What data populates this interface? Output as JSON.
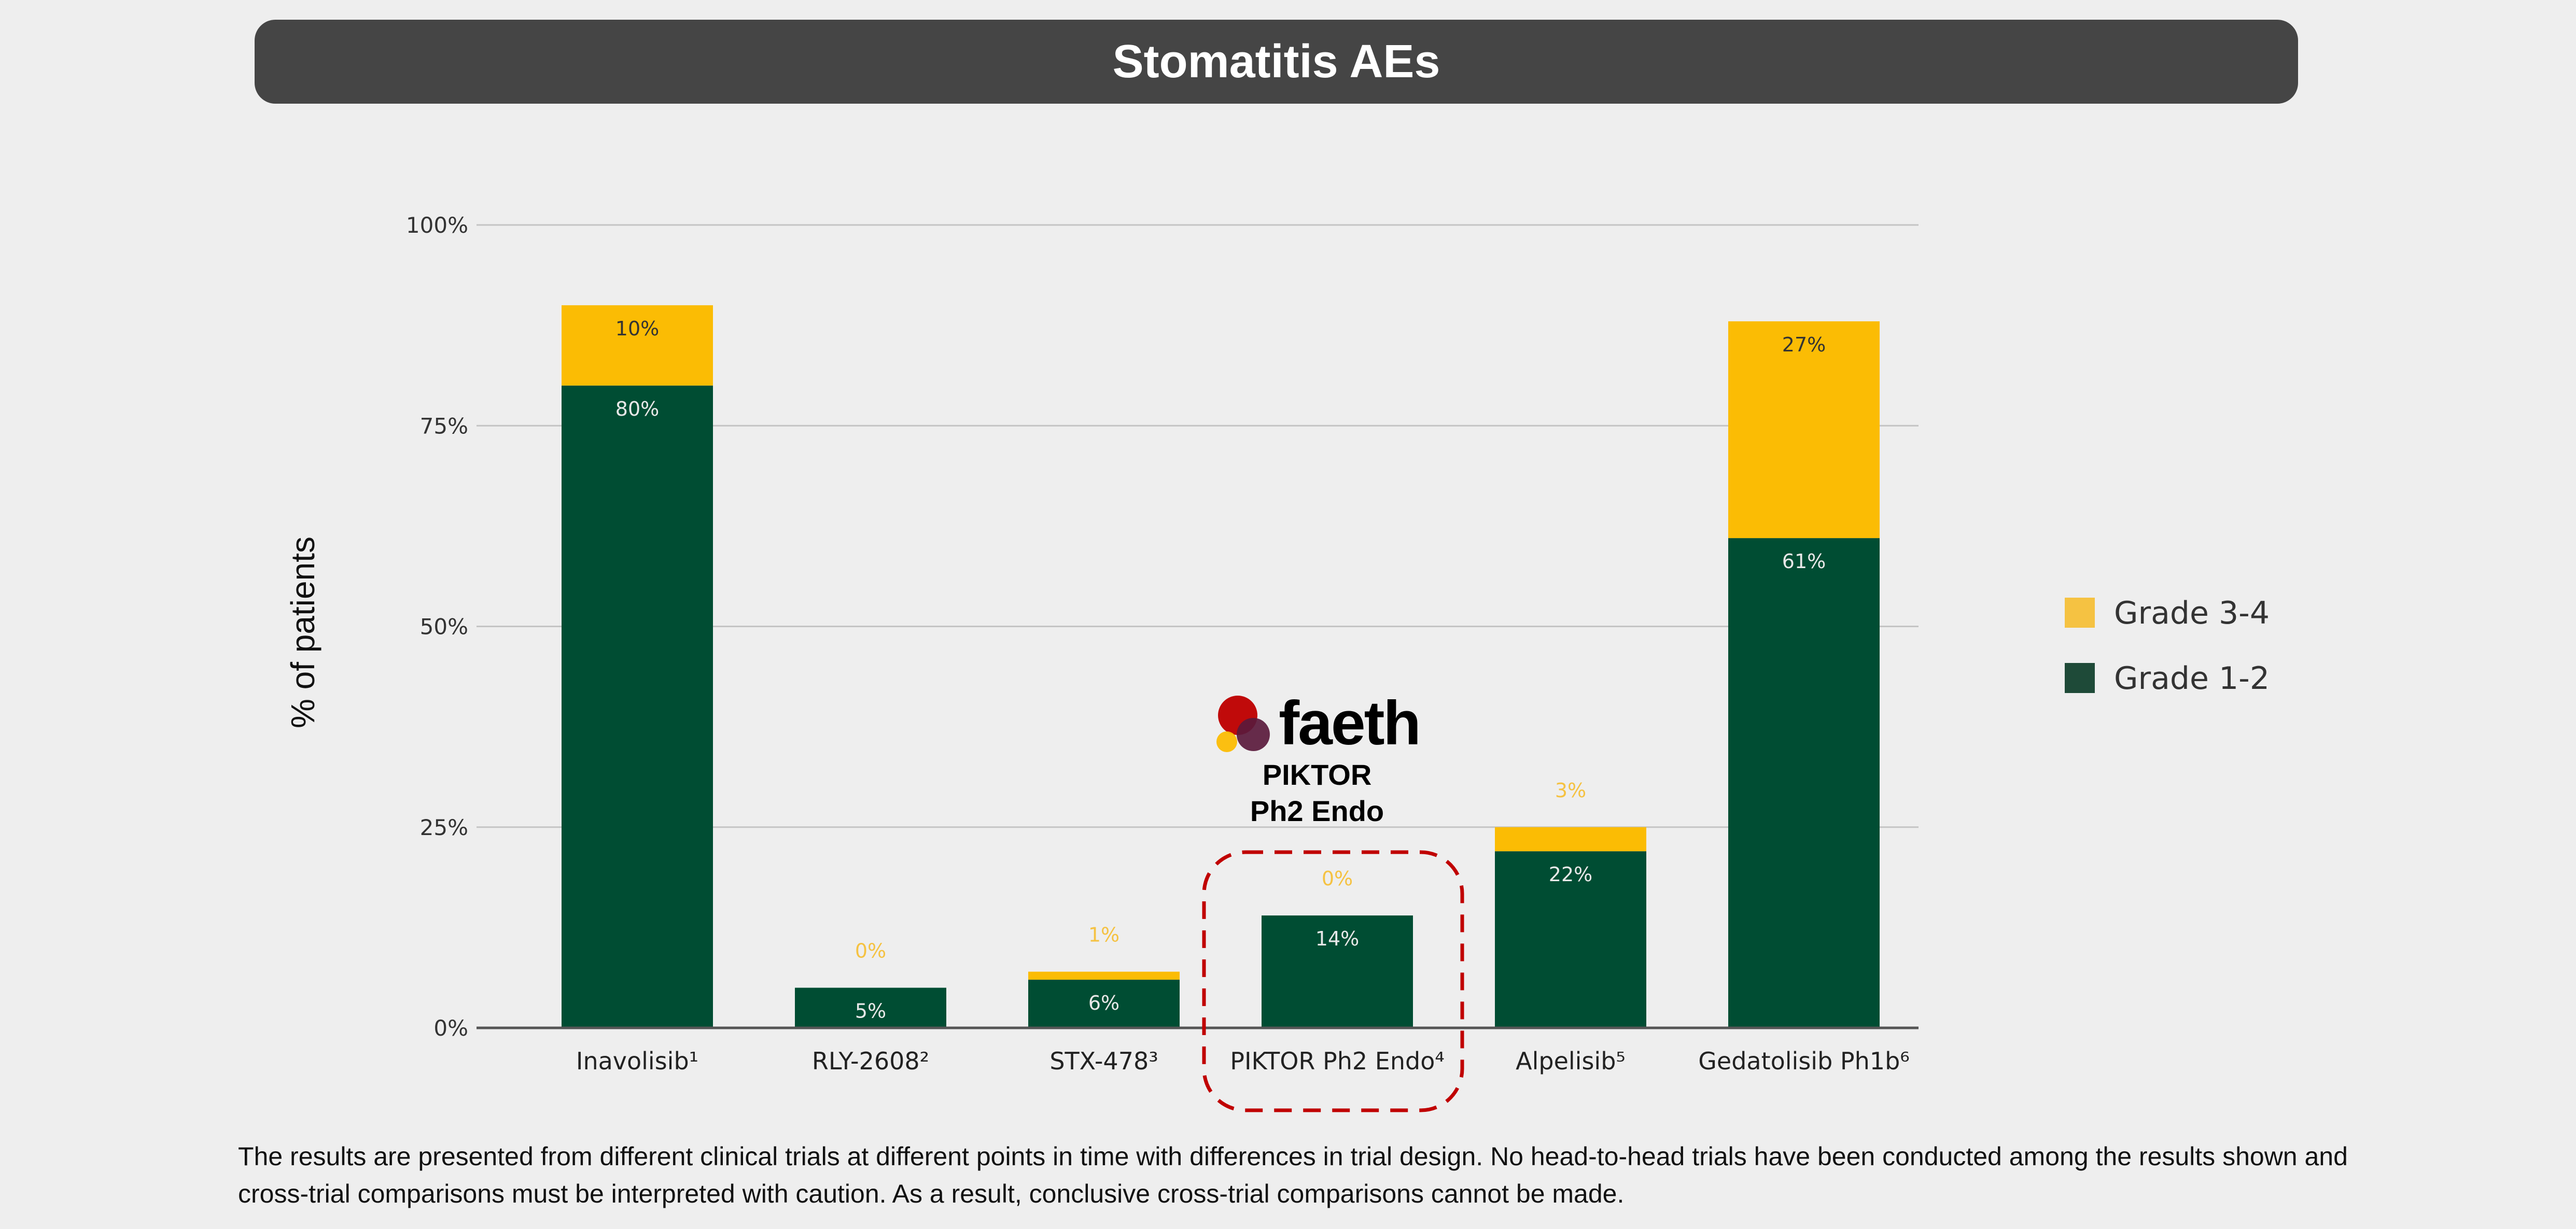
{
  "header": {
    "title": "Stomatitis AEs"
  },
  "callout": {
    "logo_text": "faeth",
    "line1": "PIKTOR",
    "line2": "Ph2 Endo"
  },
  "footnote": "The results are presented from different clinical trials at different points in time with differences in trial design. No head-to-head trials have been conducted among the results shown and cross-trial comparisons must be interpreted with caution. As a result, conclusive cross-trial comparisons cannot be made.",
  "chart_data": {
    "type": "bar",
    "stacked": true,
    "title": "",
    "xlabel": "",
    "ylabel": "% of patients",
    "ylim": [
      0,
      100
    ],
    "yticks": [
      "0%",
      "25%",
      "50%",
      "75%",
      "100%"
    ],
    "grid": true,
    "legend_position": "right",
    "categories": [
      "Inavolisib¹",
      "RLY-2608²",
      "STX-478³",
      "PIKTOR Ph2 Endo⁴",
      "Alpelisib⁵",
      "Gedatolisib Ph1b⁶"
    ],
    "highlighted_category": "PIKTOR Ph2 Endo⁴",
    "series": [
      {
        "name": "Grade 1-2",
        "color": "#004d33",
        "values": [
          80,
          5,
          6,
          14,
          22,
          61
        ],
        "labels": [
          "80%",
          "5%",
          "6%",
          "14%",
          "22%",
          "61%"
        ]
      },
      {
        "name": "Grade 3-4",
        "color": "#fbbc04",
        "values": [
          10,
          0,
          1,
          0,
          3,
          27
        ],
        "labels": [
          "10%",
          "0%",
          "1%",
          "0%",
          "3%",
          "27%"
        ]
      }
    ]
  }
}
